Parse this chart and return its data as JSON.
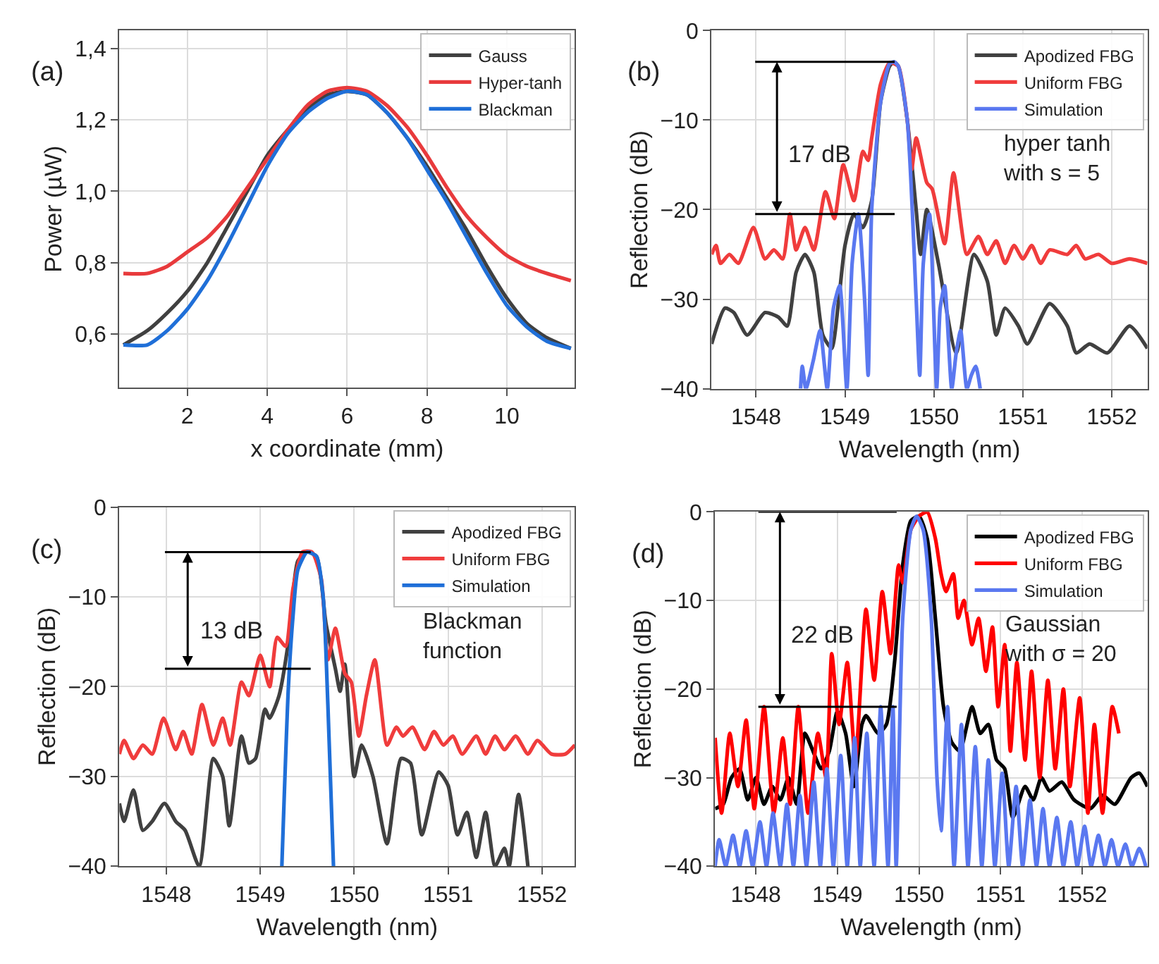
{
  "chart_data": [
    {
      "type": "line",
      "xlabel": "x coordinate (mm)",
      "ylabel": "Power (µW)",
      "xlim": [
        0.3,
        11.7
      ],
      "ylim": [
        0.45,
        1.45
      ],
      "xticks": [
        2,
        4,
        6,
        8,
        10
      ],
      "yticks": [
        {
          "value": 0.6,
          "label": "0,6"
        },
        {
          "value": 0.8,
          "label": "0,8"
        },
        {
          "value": 1.0,
          "label": "1,0"
        },
        {
          "value": 1.2,
          "label": "1,2"
        },
        {
          "value": 1.4,
          "label": "1,4"
        }
      ],
      "grid": true,
      "legend": "top right",
      "annotations": [
        "(a)"
      ],
      "series": [
        {
          "name": "Gauss",
          "color": "#404040",
          "x": [
            0.4,
            1,
            1.5,
            2,
            2.5,
            3,
            3.5,
            4,
            4.5,
            5,
            5.5,
            6,
            6.5,
            7,
            7.5,
            8,
            8.5,
            9,
            9.5,
            10,
            10.5,
            11,
            11.6
          ],
          "values": [
            0.57,
            0.61,
            0.66,
            0.72,
            0.8,
            0.9,
            1.0,
            1.1,
            1.17,
            1.23,
            1.27,
            1.28,
            1.27,
            1.22,
            1.15,
            1.07,
            0.98,
            0.89,
            0.79,
            0.7,
            0.63,
            0.59,
            0.56
          ]
        },
        {
          "name": "Hyper-tanh",
          "color": "#e83a3c",
          "x": [
            0.4,
            1,
            1.5,
            2,
            2.5,
            3,
            3.5,
            4,
            4.5,
            5,
            5.5,
            6,
            6.5,
            7,
            7.5,
            8,
            8.5,
            9,
            9.5,
            10,
            10.5,
            11,
            11.6
          ],
          "values": [
            0.77,
            0.77,
            0.79,
            0.83,
            0.87,
            0.93,
            1.01,
            1.09,
            1.17,
            1.24,
            1.28,
            1.29,
            1.28,
            1.24,
            1.18,
            1.1,
            1.01,
            0.93,
            0.87,
            0.82,
            0.79,
            0.77,
            0.75
          ]
        },
        {
          "name": "Blackman",
          "color": "#1f6fd8",
          "x": [
            0.4,
            1,
            1.5,
            2,
            2.5,
            3,
            3.5,
            4,
            4.5,
            5,
            5.5,
            6,
            6.5,
            7,
            7.5,
            8,
            8.5,
            9,
            9.5,
            10,
            10.5,
            11,
            11.6
          ],
          "values": [
            0.57,
            0.57,
            0.61,
            0.67,
            0.75,
            0.85,
            0.96,
            1.07,
            1.16,
            1.22,
            1.26,
            1.28,
            1.27,
            1.22,
            1.15,
            1.06,
            0.97,
            0.87,
            0.77,
            0.68,
            0.62,
            0.58,
            0.56
          ]
        }
      ]
    },
    {
      "type": "line",
      "xlabel": "Wavelength (nm)",
      "ylabel": "Reflection (dB)",
      "xlim": [
        1547.5,
        1552.4
      ],
      "ylim": [
        -40,
        0
      ],
      "xticks": [
        1548,
        1549,
        1550,
        1551,
        1552
      ],
      "yticks": [
        {
          "value": -40,
          "label": "−40"
        },
        {
          "value": -30,
          "label": "−30"
        },
        {
          "value": -20,
          "label": "−20"
        },
        {
          "value": -10,
          "label": "−10"
        },
        0
      ],
      "grid": true,
      "legend": "top right",
      "annotations": [
        "(b)",
        "hyper tanh\nwith s = 5",
        "17 dB"
      ],
      "ref_lines": [
        {
          "axis": "y",
          "value": -3.5,
          "color": "#000000"
        },
        {
          "axis": "y",
          "value": -20.5,
          "color": "#000000"
        }
      ],
      "series": [
        {
          "name": "Apodized FBG",
          "color": "#404040",
          "x": [
            1547.5,
            1547.65,
            1547.75,
            1547.9,
            1548.1,
            1548.25,
            1548.35,
            1548.45,
            1548.55,
            1548.65,
            1548.75,
            1548.85,
            1548.93,
            1549.0,
            1549.1,
            1549.2,
            1549.3,
            1549.4,
            1549.5,
            1549.55,
            1549.6,
            1549.7,
            1549.8,
            1549.85,
            1549.92,
            1550.05,
            1550.25,
            1550.45,
            1550.6,
            1550.7,
            1550.8,
            1550.95,
            1551.05,
            1551.3,
            1551.5,
            1551.6,
            1551.75,
            1551.95,
            1552.2,
            1552.4
          ],
          "values": [
            -35,
            -31,
            -31.5,
            -34,
            -31.5,
            -32,
            -33,
            -27,
            -25,
            -27,
            -34,
            -35.5,
            -30,
            -24,
            -20.5,
            -22,
            -19,
            -8,
            -4,
            -3.5,
            -4,
            -10,
            -20,
            -25,
            -20,
            -26,
            -36,
            -25,
            -28,
            -34,
            -31,
            -33,
            -35,
            -30.5,
            -33,
            -36,
            -35,
            -36,
            -33,
            -35.5
          ]
        },
        {
          "name": "Uniform FBG",
          "color": "#f03c3c",
          "x": [
            1547.5,
            1547.55,
            1547.6,
            1547.7,
            1547.8,
            1547.97,
            1548.1,
            1548.2,
            1548.3,
            1548.38,
            1548.45,
            1548.55,
            1548.65,
            1548.78,
            1548.88,
            1548.98,
            1549.1,
            1549.2,
            1549.26,
            1549.3,
            1549.4,
            1549.5,
            1549.6,
            1549.7,
            1549.75,
            1549.8,
            1549.92,
            1549.98,
            1550.12,
            1550.22,
            1550.37,
            1550.5,
            1550.6,
            1550.7,
            1550.8,
            1550.9,
            1551.0,
            1551.1,
            1551.2,
            1551.3,
            1551.5,
            1551.6,
            1551.7,
            1551.85,
            1552.0,
            1552.2,
            1552.4
          ],
          "values": [
            -25,
            -24,
            -26,
            -25,
            -26,
            -22,
            -25.5,
            -24.5,
            -25.5,
            -20.5,
            -24.5,
            -22,
            -24.5,
            -18,
            -21,
            -15,
            -19,
            -13.5,
            -14.5,
            -12,
            -6,
            -3.6,
            -4,
            -10,
            -15.5,
            -12,
            -17,
            -17.7,
            -23.8,
            -15.9,
            -25,
            -23,
            -25,
            -23.5,
            -26,
            -24,
            -25.5,
            -24,
            -26,
            -24.5,
            -25,
            -24,
            -25.5,
            -25,
            -26,
            -25.5,
            -26
          ]
        },
        {
          "name": "Simulation",
          "color": "#5a78f0",
          "x": [
            1548.5,
            1548.52,
            1548.56,
            1548.64,
            1548.72,
            1548.8,
            1548.87,
            1548.94,
            1549.02,
            1549.08,
            1549.15,
            1549.22,
            1549.26,
            1549.3,
            1549.4,
            1549.5,
            1549.55,
            1549.6,
            1549.7,
            1549.8,
            1549.84,
            1549.88,
            1549.95,
            1550.03,
            1550.07,
            1550.12,
            1550.2,
            1550.25,
            1550.3,
            1550.37,
            1550.42,
            1550.47,
            1550.52
          ],
          "values": [
            -40,
            -37.5,
            -40,
            -37,
            -33.5,
            -40,
            -31,
            -28.5,
            -40,
            -26,
            -20.5,
            -30,
            -38.5,
            -20,
            -8,
            -3.7,
            -3.5,
            -4,
            -10,
            -30,
            -38.5,
            -26,
            -20.5,
            -40,
            -31,
            -28.5,
            -40,
            -36,
            -33.5,
            -40,
            -38.5,
            -37.5,
            -40
          ]
        }
      ]
    },
    {
      "type": "line",
      "xlabel": "Wavelength (nm)",
      "ylabel": "Reflection (dB)",
      "xlim": [
        1547.5,
        1552.35
      ],
      "ylim": [
        -40,
        0
      ],
      "xticks": [
        1548,
        1549,
        1550,
        1551,
        1552
      ],
      "yticks": [
        {
          "value": -40,
          "label": "−40"
        },
        {
          "value": -30,
          "label": "−30"
        },
        {
          "value": -20,
          "label": "−20"
        },
        {
          "value": -10,
          "label": "−10"
        },
        0
      ],
      "grid": true,
      "legend": "top right",
      "annotations": [
        "(c)",
        "Blackman\nfunction",
        "13 dB"
      ],
      "ref_lines": [
        {
          "axis": "y",
          "value": -5,
          "color": "#000000"
        },
        {
          "axis": "y",
          "value": -18,
          "color": "#000000"
        }
      ],
      "series": [
        {
          "name": "Apodized FBG",
          "color": "#404040",
          "x": [
            1547.5,
            1547.55,
            1547.65,
            1547.75,
            1547.85,
            1547.98,
            1548.1,
            1548.2,
            1548.35,
            1548.5,
            1548.6,
            1548.67,
            1548.8,
            1548.88,
            1548.95,
            1549.05,
            1549.1,
            1549.2,
            1549.3,
            1549.4,
            1549.5,
            1549.6,
            1549.7,
            1549.8,
            1549.85,
            1549.9,
            1550.0,
            1550.08,
            1550.2,
            1550.35,
            1550.5,
            1550.6,
            1550.72,
            1550.9,
            1551.0,
            1551.1,
            1551.2,
            1551.3,
            1551.4,
            1551.5,
            1551.6,
            1551.65,
            1551.75,
            1551.85
          ],
          "values": [
            -33,
            -35,
            -31.5,
            -36,
            -35,
            -33,
            -35,
            -36,
            -40,
            -28,
            -30,
            -35.5,
            -25.5,
            -28.5,
            -28,
            -22.5,
            -23.5,
            -21,
            -15,
            -6,
            -5,
            -5.5,
            -13,
            -18,
            -20.5,
            -17.5,
            -30,
            -26.5,
            -30,
            -37.5,
            -28,
            -28.5,
            -36.5,
            -29.5,
            -31,
            -36.5,
            -34,
            -39,
            -34,
            -40,
            -38,
            -40,
            -32,
            -40
          ]
        },
        {
          "name": "Uniform FBG",
          "color": "#f03c3c",
          "x": [
            1547.5,
            1547.55,
            1547.65,
            1547.75,
            1547.85,
            1547.97,
            1548.1,
            1548.18,
            1548.27,
            1548.38,
            1548.5,
            1548.6,
            1548.68,
            1548.8,
            1548.88,
            1549.0,
            1549.1,
            1549.18,
            1549.27,
            1549.35,
            1549.45,
            1549.55,
            1549.65,
            1549.72,
            1549.8,
            1549.9,
            1549.97,
            1550.05,
            1550.13,
            1550.22,
            1550.35,
            1550.45,
            1550.52,
            1550.62,
            1550.75,
            1550.85,
            1550.95,
            1551.05,
            1551.15,
            1551.3,
            1551.4,
            1551.5,
            1551.6,
            1551.72,
            1551.85,
            1551.95,
            1552.1,
            1552.25,
            1552.35
          ],
          "values": [
            -27.5,
            -26,
            -28,
            -26.5,
            -27.5,
            -23.5,
            -27,
            -25,
            -27.5,
            -22,
            -26.5,
            -23.5,
            -26.5,
            -19.5,
            -21,
            -16.5,
            -20,
            -14.5,
            -15.5,
            -9,
            -5,
            -5,
            -8,
            -17,
            -13.5,
            -18.5,
            -19.5,
            -25.5,
            -21,
            -17,
            -26.5,
            -24.5,
            -25.5,
            -24.5,
            -27,
            -25,
            -26.5,
            -25.5,
            -27.5,
            -25.5,
            -27.5,
            -25.5,
            -27,
            -25.5,
            -27.5,
            -26,
            -27.5,
            -27.5,
            -26.5
          ]
        },
        {
          "name": "Simulation",
          "color": "#1f6fd8",
          "x": [
            1549.23,
            1549.3,
            1549.35,
            1549.4,
            1549.5,
            1549.6,
            1549.67,
            1549.72,
            1549.78
          ],
          "values": [
            -40,
            -20,
            -12,
            -7,
            -5,
            -5.5,
            -10,
            -22,
            -40
          ]
        }
      ]
    },
    {
      "type": "line",
      "xlabel": "Wavelength (nm)",
      "ylabel": "Reflection (dB)",
      "xlim": [
        1547.5,
        1552.8
      ],
      "ylim": [
        -40,
        0
      ],
      "xticks": [
        1548,
        1549,
        1550,
        1551,
        1552
      ],
      "yticks": [
        {
          "value": -40,
          "label": "−40"
        },
        {
          "value": -30,
          "label": "−30"
        },
        {
          "value": -20,
          "label": "−20"
        },
        {
          "value": -10,
          "label": "−10"
        },
        0
      ],
      "grid": true,
      "legend": "top right",
      "annotations": [
        "(d)",
        "Gaussian\nwith σ = 20",
        "22 dB"
      ],
      "ref_lines": [
        {
          "axis": "y",
          "value": 0,
          "color": "#000000"
        },
        {
          "axis": "y",
          "value": -22,
          "color": "#000000"
        }
      ],
      "series": [
        {
          "name": "Apodized FBG",
          "color": "#000000",
          "x": [
            1547.5,
            1547.6,
            1547.7,
            1547.8,
            1547.9,
            1548.0,
            1548.1,
            1548.2,
            1548.3,
            1548.4,
            1548.5,
            1548.6,
            1548.7,
            1548.8,
            1548.9,
            1549.0,
            1549.1,
            1549.2,
            1549.3,
            1549.35,
            1549.5,
            1549.6,
            1549.7,
            1549.8,
            1549.9,
            1550.0,
            1550.1,
            1550.2,
            1550.3,
            1550.4,
            1550.5,
            1550.65,
            1550.75,
            1550.85,
            1550.95,
            1551.05,
            1551.15,
            1551.3,
            1551.4,
            1551.5,
            1551.6,
            1551.75,
            1551.9,
            1552.1,
            1552.25,
            1552.4,
            1552.6,
            1552.7,
            1552.8
          ],
          "values": [
            -33.5,
            -33,
            -30,
            -29,
            -32.5,
            -30,
            -33,
            -31,
            -32.5,
            -30,
            -33,
            -25,
            -27,
            -29,
            -27,
            -22.5,
            -25,
            -31,
            -24,
            -23,
            -25,
            -24,
            -17,
            -6,
            -1,
            -0.5,
            -3,
            -12,
            -22,
            -26,
            -27,
            -22,
            -25,
            -24,
            -28,
            -29,
            -34.5,
            -31,
            -32.5,
            -30,
            -31.5,
            -30.5,
            -32.5,
            -33.5,
            -32,
            -33,
            -30,
            -29.5,
            -31
          ]
        },
        {
          "name": "Uniform FBG",
          "color": "#ff0000",
          "x": [
            1547.5,
            1547.58,
            1547.68,
            1547.78,
            1547.88,
            1547.98,
            1548.1,
            1548.22,
            1548.33,
            1548.42,
            1548.52,
            1548.64,
            1548.76,
            1548.86,
            1548.93,
            1549.02,
            1549.12,
            1549.22,
            1549.35,
            1549.45,
            1549.55,
            1549.65,
            1549.75,
            1549.8,
            1549.9,
            1550.0,
            1550.1,
            1550.2,
            1550.27,
            1550.33,
            1550.42,
            1550.48,
            1550.55,
            1550.65,
            1550.73,
            1550.82,
            1550.9,
            1550.97,
            1551.05,
            1551.12,
            1551.2,
            1551.3,
            1551.38,
            1551.48,
            1551.58,
            1551.67,
            1551.77,
            1551.85,
            1551.97,
            1552.07,
            1552.15,
            1552.25,
            1552.37,
            1552.45
          ],
          "values": [
            -25.5,
            -34,
            -25,
            -31,
            -23.5,
            -33.5,
            -22,
            -34,
            -25.5,
            -33,
            -22,
            -34,
            -25,
            -30,
            -16,
            -24,
            -17,
            -28,
            -11,
            -19,
            -9,
            -16,
            -6,
            -8,
            -2,
            -0.5,
            0,
            -3,
            -7,
            -9,
            -7,
            -12,
            -10,
            -15,
            -12,
            -18,
            -13,
            -22,
            -15,
            -27,
            -17,
            -28,
            -18,
            -30,
            -19,
            -29,
            -20,
            -31,
            -21,
            -34,
            -24,
            -34,
            -22,
            -25
          ]
        },
        {
          "name": "Simulation",
          "color": "#5a78f0",
          "x": [
            1547.5,
            1547.55,
            1547.63,
            1547.72,
            1547.8,
            1547.88,
            1547.96,
            1548.05,
            1548.13,
            1548.21,
            1548.3,
            1548.38,
            1548.46,
            1548.54,
            1548.62,
            1548.71,
            1548.79,
            1548.87,
            1548.95,
            1549.04,
            1549.12,
            1549.21,
            1549.28,
            1549.36,
            1549.45,
            1549.53,
            1549.62,
            1549.68,
            1549.72,
            1549.8,
            1549.9,
            1549.97,
            1550.05,
            1550.15,
            1550.22,
            1550.27,
            1550.35,
            1550.43,
            1550.52,
            1550.6,
            1550.69,
            1550.77,
            1550.85,
            1550.93,
            1551.02,
            1551.1,
            1551.19,
            1551.27,
            1551.36,
            1551.44,
            1551.52,
            1551.6,
            1551.69,
            1551.77,
            1551.86,
            1551.94,
            1552.03,
            1552.11,
            1552.2,
            1552.28,
            1552.36,
            1552.44,
            1552.53,
            1552.61,
            1552.7,
            1552.78
          ],
          "values": [
            -40,
            -37,
            -40,
            -36.5,
            -40,
            -36,
            -40,
            -35,
            -40,
            -34,
            -40,
            -33,
            -40,
            -32,
            -40,
            -30.5,
            -40,
            -29,
            -40,
            -27.5,
            -40,
            -25.5,
            -40,
            -25,
            -40,
            -22,
            -40,
            -22,
            -40,
            -12,
            -2,
            -0.5,
            -2,
            -12,
            -30,
            -36,
            -22,
            -40,
            -24,
            -40,
            -26.5,
            -40,
            -28,
            -40,
            -29.5,
            -40,
            -31,
            -40,
            -32.5,
            -40,
            -33.5,
            -40,
            -34.5,
            -40,
            -35,
            -40,
            -35.5,
            -40,
            -36.5,
            -40,
            -37,
            -40,
            -37.5,
            -40,
            -38,
            -40
          ]
        }
      ]
    }
  ]
}
